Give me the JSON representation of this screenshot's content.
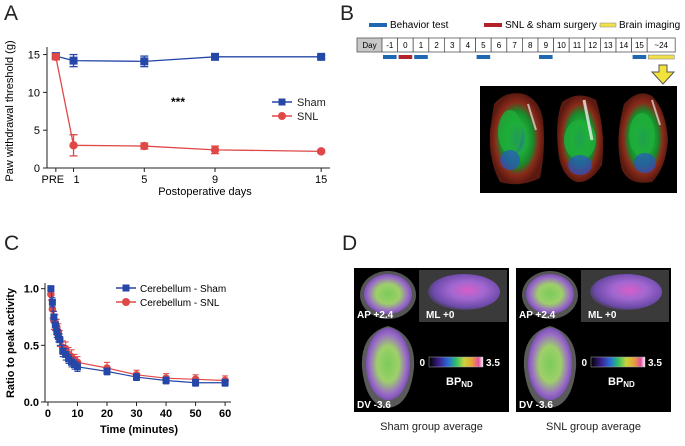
{
  "panels": {
    "A": {
      "letter": "A",
      "chart_data": {
        "type": "line",
        "title": "",
        "xlabel": "Postoperative days",
        "ylabel": "Paw withdrawal threshold (g)",
        "x_tick_labels": [
          "PRE",
          "1",
          "5",
          "9",
          "15"
        ],
        "x_tick_positions": [
          0,
          1,
          5,
          9,
          15
        ],
        "y_ticks": [
          0,
          5,
          10,
          15
        ],
        "xlim": [
          -0.5,
          15.5
        ],
        "ylim": [
          0,
          16
        ],
        "annotation": "***",
        "legend_position": "right",
        "series": [
          {
            "name": "Sham",
            "color": "#2447a8",
            "marker": "square",
            "x": [
              0,
              1,
              5,
              9,
              15
            ],
            "y": [
              14.8,
              14.2,
              14.1,
              14.7,
              14.7
            ],
            "err": [
              0.3,
              0.8,
              0.7,
              0.3,
              0.2
            ]
          },
          {
            "name": "SNL",
            "color": "#e04848",
            "marker": "circle",
            "x": [
              0,
              1,
              5,
              9,
              15
            ],
            "y": [
              14.7,
              3.0,
              2.9,
              2.4,
              2.2
            ],
            "err": [
              0.4,
              1.4,
              0.4,
              0.5,
              0.2
            ]
          }
        ]
      }
    },
    "B": {
      "letter": "B",
      "legend": [
        {
          "label": "Behavior test",
          "color": "#1f67b0"
        },
        {
          "label": "SNL & sham surgery",
          "color": "#b3222a"
        },
        {
          "label": "Brain imaging",
          "color": "#f0e04a"
        }
      ],
      "timeline_labels": [
        "Day",
        "-1",
        "0",
        "1",
        "2",
        "3",
        "4",
        "5",
        "6",
        "7",
        "8",
        "9",
        "10",
        "11",
        "12",
        "13",
        "14",
        "15",
        "~24"
      ],
      "behavior_days": [
        "-1",
        "1",
        "5",
        "9",
        "15"
      ],
      "surgery_days": [
        "0"
      ],
      "imaging_days": [
        "~24"
      ],
      "brain_images": [
        "brain-sagittal-left",
        "brain-coronal",
        "brain-sagittal-right"
      ]
    },
    "C": {
      "letter": "C",
      "chart_data": {
        "type": "line",
        "title": "",
        "xlabel": "Time (minutes)",
        "ylabel": "Ratio to peak activity",
        "x_ticks": [
          0,
          10,
          20,
          30,
          40,
          50,
          60
        ],
        "y_ticks": [
          0.0,
          0.5,
          1.0
        ],
        "xlim": [
          -1,
          62
        ],
        "ylim": [
          0,
          1.05
        ],
        "legend_position": "top-right",
        "series": [
          {
            "name": "Cerebellum - Sham",
            "color": "#2447a8",
            "marker": "square",
            "x": [
              1,
              1.5,
              2,
              2.5,
              3,
              3.5,
              4,
              5,
              6,
              7,
              8,
              9,
              10,
              20,
              30,
              40,
              50,
              60
            ],
            "y": [
              1.0,
              0.88,
              0.75,
              0.68,
              0.62,
              0.58,
              0.55,
              0.45,
              0.42,
              0.38,
              0.35,
              0.33,
              0.31,
              0.27,
              0.22,
              0.19,
              0.17,
              0.17
            ],
            "err": [
              0.02,
              0.04,
              0.05,
              0.05,
              0.05,
              0.05,
              0.05,
              0.05,
              0.05,
              0.04,
              0.04,
              0.04,
              0.04,
              0.03,
              0.03,
              0.03,
              0.03,
              0.03
            ]
          },
          {
            "name": "Cerebellum - SNL",
            "color": "#e04848",
            "marker": "circle",
            "x": [
              1,
              1.5,
              2,
              2.5,
              3,
              3.5,
              4,
              5,
              6,
              7,
              8,
              9,
              10,
              20,
              30,
              40,
              50,
              60
            ],
            "y": [
              0.95,
              0.82,
              0.72,
              0.7,
              0.66,
              0.62,
              0.56,
              0.48,
              0.47,
              0.42,
              0.4,
              0.37,
              0.35,
              0.3,
              0.24,
              0.21,
              0.2,
              0.19
            ],
            "err": [
              0.05,
              0.08,
              0.08,
              0.07,
              0.07,
              0.07,
              0.07,
              0.06,
              0.06,
              0.06,
              0.06,
              0.05,
              0.05,
              0.05,
              0.04,
              0.04,
              0.04,
              0.04
            ]
          }
        ]
      }
    },
    "D": {
      "letter": "D",
      "groups": [
        {
          "caption": "Sham group average",
          "ap_label": "AP +2.4",
          "ml_label": "ML +0",
          "dv_label": "DV -3.6"
        },
        {
          "caption": "SNL group average",
          "ap_label": "AP +2.4",
          "ml_label": "ML +0",
          "dv_label": "DV -3.6"
        }
      ],
      "colorbar": {
        "min": "0",
        "max": "3.5",
        "label_main": "BP",
        "label_sub": "ND"
      }
    }
  }
}
